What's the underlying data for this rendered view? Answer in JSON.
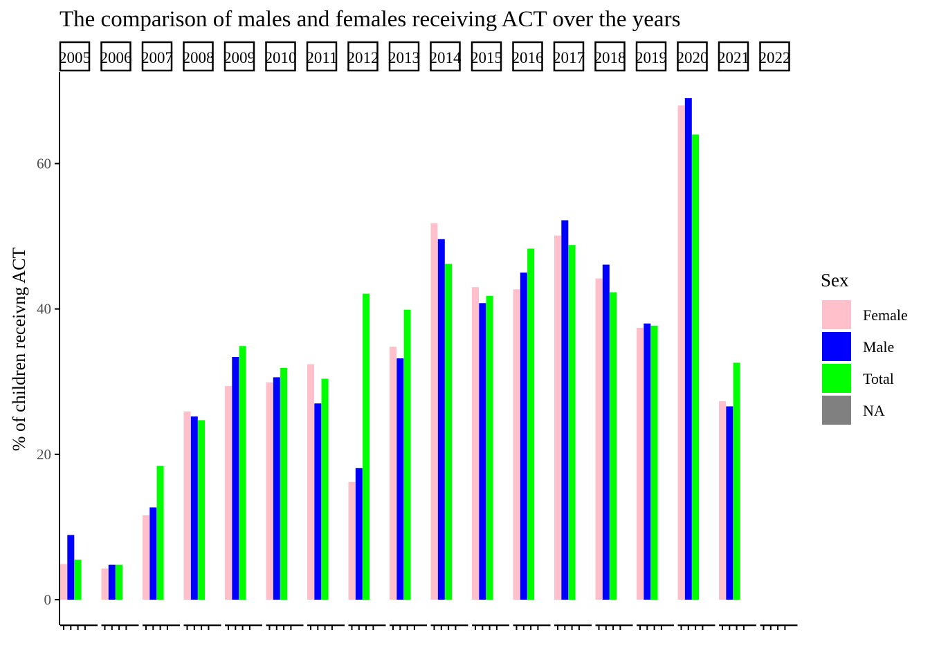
{
  "chart_data": {
    "type": "bar",
    "title": "The comparison of males and females receiving ACT over the years",
    "ylabel": "% of children receivng ACT",
    "xlabel": "",
    "ylim": [
      -5,
      72
    ],
    "yticks": [
      0,
      20,
      40,
      60
    ],
    "categories": [
      "2005",
      "2006",
      "2007",
      "2008",
      "2009",
      "2010",
      "2011",
      "2012",
      "2013",
      "2014",
      "2015",
      "2016",
      "2017",
      "2018",
      "2019",
      "2020",
      "2021",
      "2022"
    ],
    "series": [
      {
        "name": "Female",
        "color": "#FFC0CB",
        "values": [
          4.9,
          4.3,
          11.6,
          25.9,
          29.4,
          29.9,
          32.4,
          16.2,
          34.8,
          51.8,
          43.0,
          42.7,
          50.1,
          44.2,
          37.4,
          68.0,
          27.3,
          null
        ]
      },
      {
        "name": "Male",
        "color": "#0000FF",
        "values": [
          8.9,
          4.8,
          12.7,
          25.2,
          33.4,
          30.6,
          27.0,
          18.1,
          33.2,
          49.6,
          40.8,
          45.0,
          52.2,
          46.1,
          38.0,
          69.0,
          26.6,
          null
        ]
      },
      {
        "name": "Total",
        "color": "#00FF00",
        "values": [
          5.5,
          4.8,
          18.4,
          24.7,
          34.9,
          31.9,
          30.4,
          42.1,
          39.9,
          46.2,
          41.8,
          48.3,
          48.8,
          42.3,
          37.7,
          64.0,
          32.6,
          null
        ]
      },
      {
        "name": "NA",
        "color": "#808080",
        "values": [
          null,
          null,
          null,
          null,
          null,
          null,
          null,
          null,
          null,
          null,
          null,
          null,
          null,
          null,
          null,
          null,
          null,
          null
        ]
      }
    ],
    "legend": {
      "title": "Sex",
      "position": "right"
    },
    "grid": false
  }
}
